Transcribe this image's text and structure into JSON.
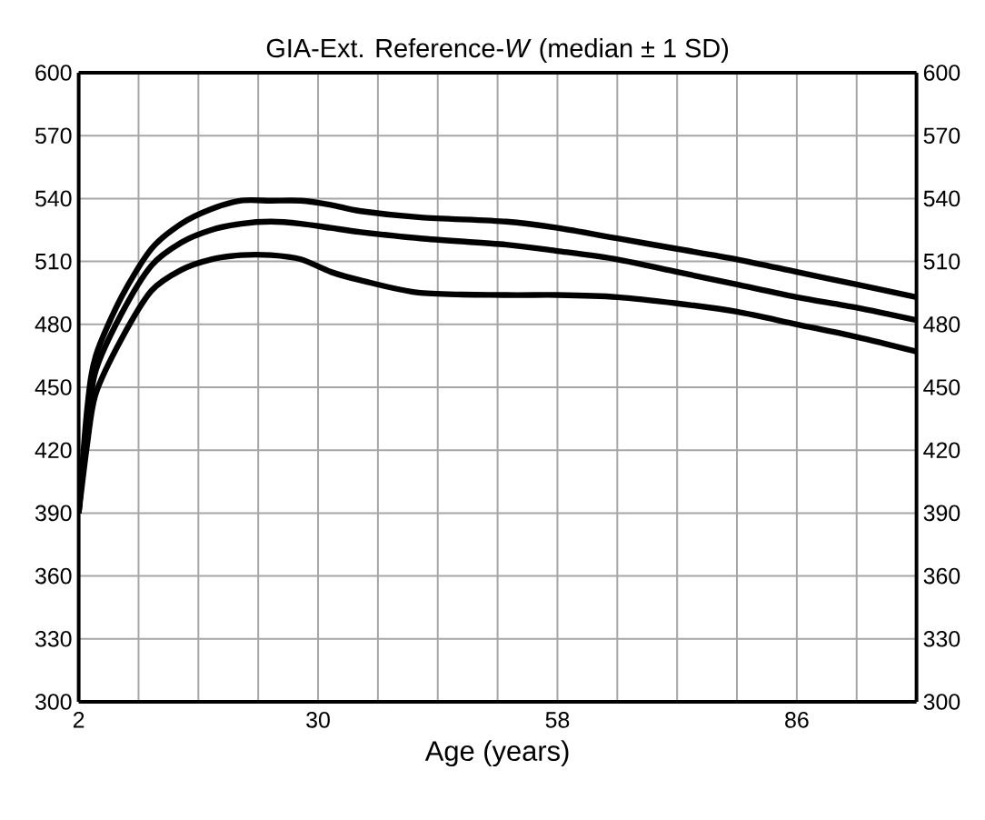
{
  "chart_data": {
    "type": "line",
    "title": "GIA-Ext. Reference-*W* (median ± 1 SD)",
    "xlabel": "Age (years)",
    "x": [
      2,
      3,
      4,
      7,
      10.5,
      14,
      17.5,
      21,
      24.5,
      28,
      31.5,
      35,
      42,
      52,
      58,
      65,
      72,
      79,
      86,
      93,
      100
    ],
    "series": [
      {
        "color": "#000000",
        "values": [
          390,
          440,
          465,
          493,
          516,
          528,
          535,
          539,
          539,
          539,
          537,
          534,
          531,
          529,
          526,
          521,
          516,
          511,
          505,
          499,
          493
        ]
      },
      {
        "color": "#000000",
        "values": [
          390,
          432,
          458,
          485,
          508,
          519,
          525,
          528,
          529,
          528,
          526,
          524,
          521,
          518,
          515,
          511,
          505,
          499,
          493,
          488,
          482
        ]
      },
      {
        "color": "#000000",
        "values": [
          390,
          423,
          447,
          473,
          496,
          506,
          511,
          513,
          513,
          511,
          505,
          501,
          495,
          494,
          494,
          493,
          490,
          486,
          480,
          474,
          467
        ]
      }
    ],
    "xlim": [
      2,
      100
    ],
    "xticks": [
      2,
      {
        "value": 9,
        "label": null
      },
      {
        "value": 16,
        "label": null
      },
      {
        "value": 23,
        "label": null
      },
      30,
      {
        "value": 37,
        "label": null
      },
      {
        "value": 44,
        "label": null
      },
      {
        "value": 51,
        "label": null
      },
      58,
      {
        "value": 65,
        "label": null
      },
      {
        "value": 72,
        "label": null
      },
      {
        "value": 79,
        "label": null
      },
      86,
      {
        "value": 93,
        "label": null
      }
    ],
    "ylim": [
      300,
      600
    ],
    "yticks": [
      300,
      330,
      360,
      390,
      420,
      450,
      480,
      510,
      540,
      570,
      600
    ],
    "y2lim": [
      300,
      600
    ],
    "y2ticks": [
      300,
      330,
      360,
      390,
      420,
      450,
      480,
      510,
      540,
      570,
      600
    ],
    "grid": true,
    "marker": "none",
    "line_style": "solid"
  }
}
